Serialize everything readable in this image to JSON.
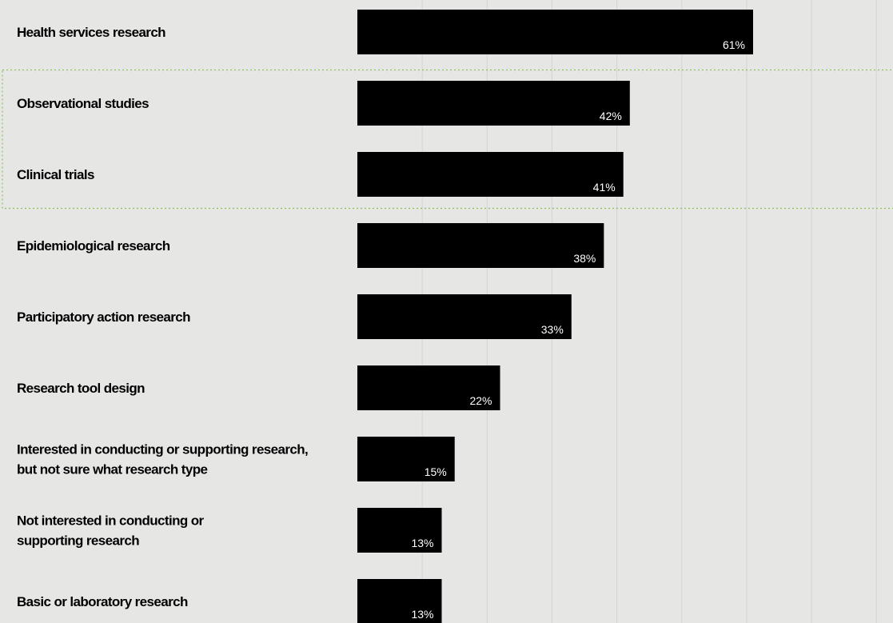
{
  "chart_data": {
    "type": "bar",
    "orientation": "horizontal",
    "categories": [
      [
        "Health services research"
      ],
      [
        "Observational studies"
      ],
      [
        "Clinical trials"
      ],
      [
        "Epidemiological research"
      ],
      [
        "Participatory action research"
      ],
      [
        "Research tool design"
      ],
      [
        "Interested in conducting or supporting research,",
        "but not sure what research type"
      ],
      [
        "Not interested in conducting or",
        "supporting research"
      ],
      [
        "Basic or laboratory research"
      ]
    ],
    "values": [
      61,
      42,
      41,
      38,
      33,
      22,
      15,
      13,
      13
    ],
    "value_labels": [
      "61%",
      "42%",
      "41%",
      "38%",
      "33%",
      "22%",
      "15%",
      "13%",
      "13%"
    ],
    "value_unit": "%",
    "xlim": [
      0,
      83
    ],
    "grid": true,
    "highlighted_categories": [
      "Observational studies",
      "Clinical trials"
    ],
    "colors": {
      "background": "#e6e7e5",
      "bar": "#000000",
      "value_text": "#ffffff",
      "category_text": "#000000",
      "grid": "#d3d4d2",
      "highlight_border": "#8bbf5a"
    }
  }
}
